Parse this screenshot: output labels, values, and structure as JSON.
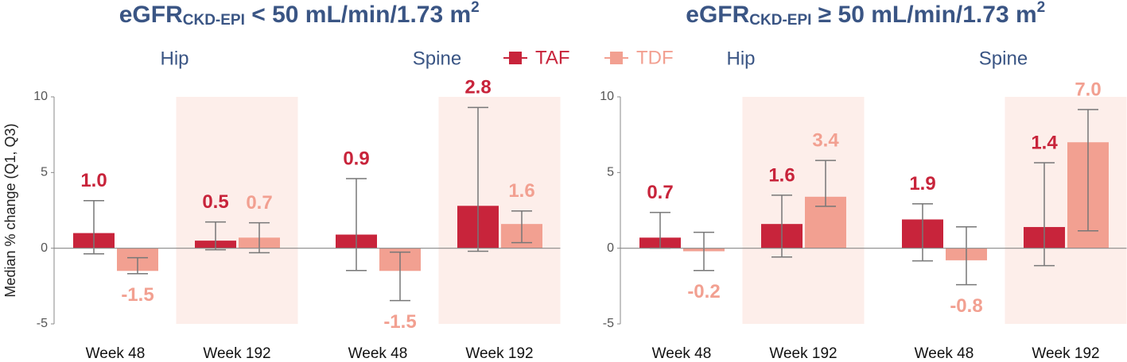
{
  "chart_data": [
    {
      "type": "bar",
      "title": {
        "main": "eGFR",
        "sub": "CKD-EPI",
        "rest": " < 50 mL/min/1.73 m",
        "sup": "2"
      },
      "ylabel": "Median % change (Q1, Q3)",
      "groups": [
        "Hip",
        "Spine"
      ],
      "categories": [
        "Week 48",
        "Week 192",
        "Week 48",
        "Week 192"
      ],
      "highlight_categories": [
        1,
        3
      ],
      "legend": "top-center",
      "ylim": [
        -5,
        10
      ],
      "yticks": [
        10,
        5,
        0,
        -5
      ],
      "series": [
        {
          "name": "TAF",
          "color": "#c8243b",
          "values": [
            1.0,
            0.5,
            0.9,
            2.8
          ],
          "value_labels": [
            "1.0",
            "0.5",
            "0.9",
            "2.8"
          ],
          "q1": [
            -0.37,
            -0.1,
            -1.47,
            -0.2
          ],
          "q3": [
            3.14,
            1.73,
            4.6,
            9.3
          ]
        },
        {
          "name": "TDF",
          "color": "#f2a091",
          "values": [
            -1.5,
            0.7,
            -1.5,
            1.6
          ],
          "value_labels": [
            "-1.5",
            "0.7",
            "-1.5",
            "1.6"
          ],
          "q1": [
            -1.68,
            -0.3,
            -3.46,
            0.37
          ],
          "q3": [
            -0.63,
            1.68,
            -0.26,
            2.46
          ]
        }
      ]
    },
    {
      "type": "bar",
      "title": {
        "main": "eGFR",
        "sub": "CKD-EPI",
        "rest": " ≥ 50 mL/min/1.73 m",
        "sup": "2"
      },
      "groups": [
        "Hip",
        "Spine"
      ],
      "categories": [
        "Week 48",
        "Week 192",
        "Week 48",
        "Week 192"
      ],
      "highlight_categories": [
        1,
        3
      ],
      "ylim": [
        -5,
        10
      ],
      "yticks": [
        10,
        5,
        0,
        -5
      ],
      "series": [
        {
          "color": "#c8243b",
          "values": [
            0.7,
            1.6,
            1.9,
            1.4
          ],
          "value_labels": [
            "0.7",
            "1.6",
            "1.9",
            "1.4"
          ],
          "q1": [
            0,
            -0.58,
            -0.84,
            -1.15
          ],
          "q3": [
            2.36,
            3.5,
            2.93,
            5.65
          ]
        },
        {
          "color": "#f2a091",
          "values": [
            -0.2,
            3.4,
            -0.8,
            7.0
          ],
          "value_labels": [
            "-0.2",
            "3.4",
            "-0.8",
            "7.0"
          ],
          "q1": [
            -1.47,
            2.77,
            -2.41,
            1.15
          ],
          "q3": [
            1.05,
            5.8,
            1.41,
            9.16
          ]
        }
      ]
    }
  ]
}
